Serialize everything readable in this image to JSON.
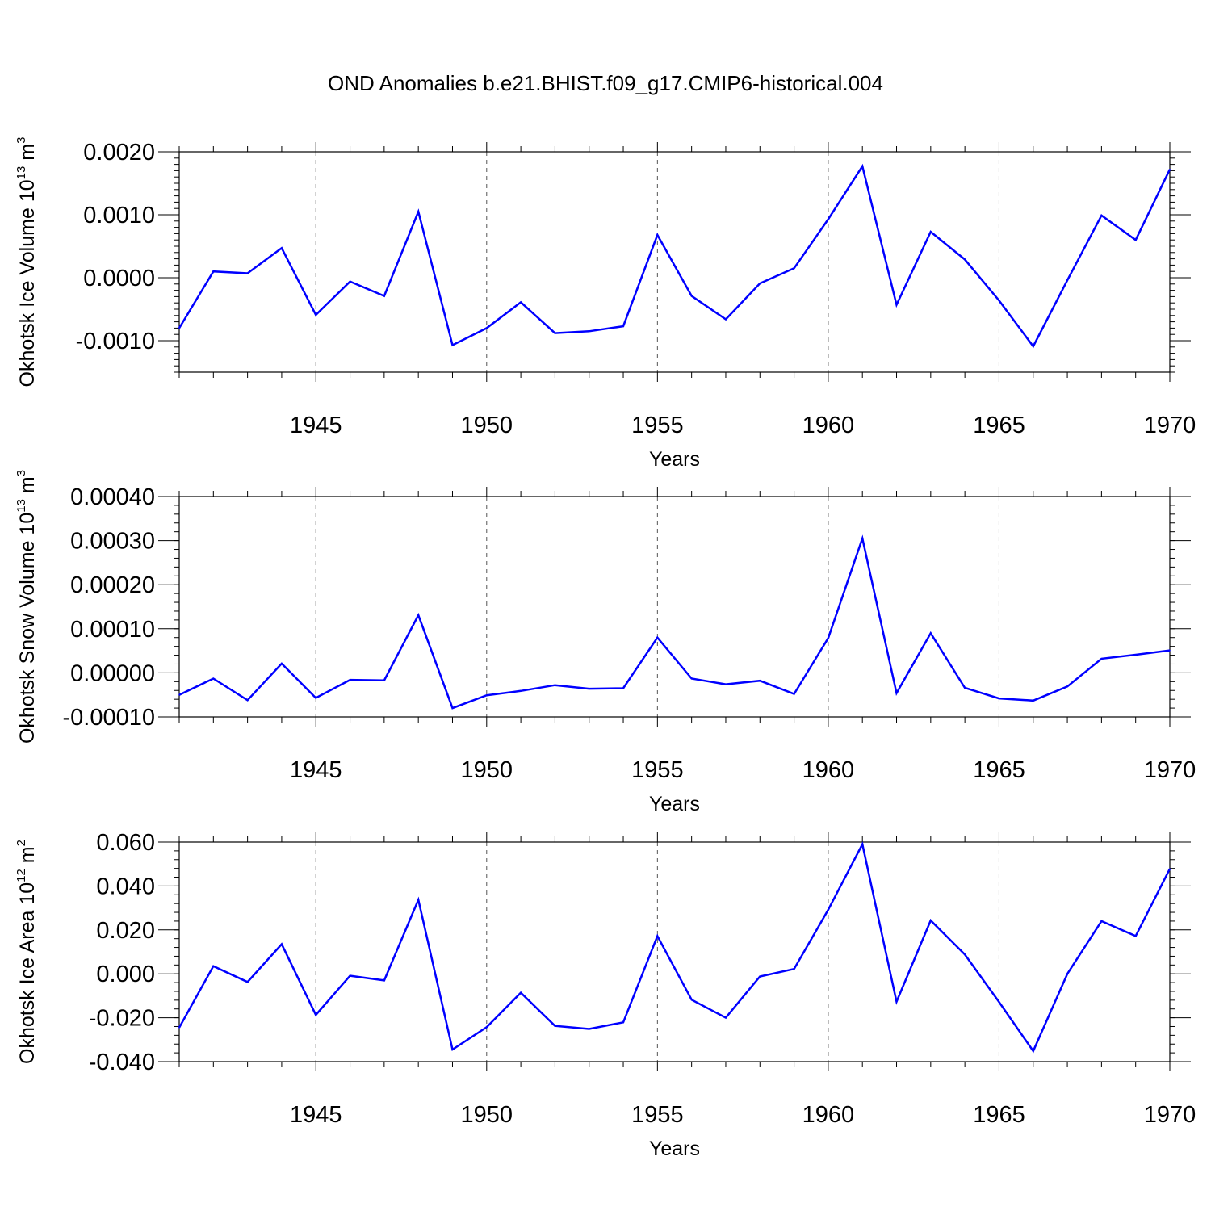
{
  "title": "OND Anomalies b.e21.BHIST.f09_g17.CMIP6-historical.004",
  "line_color": "#0000ff",
  "chart_data": [
    {
      "type": "line",
      "ylabel": "Okhotsk Ice Volume 10",
      "ylabel_sup": "13",
      "ylabel_unit": "m",
      "ylabel_unit_sup": "3",
      "xlabel": "Years",
      "xlim": [
        1941,
        1970
      ],
      "ylim": [
        -0.0015,
        0.002
      ],
      "yticks": [
        -0.001,
        0,
        0.001,
        0.002
      ],
      "ytick_labels": [
        "-0.0010",
        "0.0000",
        "0.0010",
        "0.0020"
      ],
      "yminor": 0.0001,
      "xticks": [
        1945,
        1950,
        1955,
        1960,
        1965,
        1970
      ],
      "xtick_labels": [
        "1945",
        "1950",
        "1955",
        "1960",
        "1965",
        "1970"
      ],
      "x": [
        1941,
        1942,
        1943,
        1944,
        1945,
        1946,
        1947,
        1948,
        1949,
        1950,
        1951,
        1952,
        1953,
        1954,
        1955,
        1956,
        1957,
        1958,
        1959,
        1960,
        1961,
        1962,
        1963,
        1964,
        1965,
        1966,
        1967,
        1968,
        1969,
        1970
      ],
      "series": [
        {
          "values": [
            -0.0008,
            0.0001,
            7e-05,
            0.00047,
            -0.00059,
            -6e-05,
            -0.00029,
            0.00105,
            -0.00107,
            -0.0008,
            -0.00039,
            -0.00088,
            -0.00085,
            -0.00077,
            0.00068,
            -0.00029,
            -0.00066,
            -9e-05,
            0.00015,
            0.00093,
            0.00177,
            -0.00043,
            0.00073,
            0.00029,
            -0.00036,
            -0.00109,
            -4e-05,
            0.00099,
            0.0006,
            0.00172
          ]
        }
      ]
    },
    {
      "type": "line",
      "ylabel": "Okhotsk Snow Volume 10",
      "ylabel_sup": "13",
      "ylabel_unit": "m",
      "ylabel_unit_sup": "3",
      "xlabel": "Years",
      "xlim": [
        1941,
        1970
      ],
      "ylim": [
        -0.0001,
        0.0004
      ],
      "yticks": [
        -0.0001,
        0,
        0.0001,
        0.0002,
        0.0003,
        0.0004
      ],
      "ytick_labels": [
        "-0.00010",
        "0.00000",
        "0.00010",
        "0.00020",
        "0.00030",
        "0.00040"
      ],
      "yminor": 2e-05,
      "xticks": [
        1945,
        1950,
        1955,
        1960,
        1965,
        1970
      ],
      "xtick_labels": [
        "1945",
        "1950",
        "1955",
        "1960",
        "1965",
        "1970"
      ],
      "x": [
        1941,
        1942,
        1943,
        1944,
        1945,
        1946,
        1947,
        1948,
        1949,
        1950,
        1951,
        1952,
        1953,
        1954,
        1955,
        1956,
        1957,
        1958,
        1959,
        1960,
        1961,
        1962,
        1963,
        1964,
        1965,
        1966,
        1967,
        1968,
        1969,
        1970
      ],
      "series": [
        {
          "values": [
            -5e-05,
            -1.3e-05,
            -6.2e-05,
            2.1e-05,
            -5.7e-05,
            -1.6e-05,
            -1.7e-05,
            0.000131,
            -8e-05,
            -5.1e-05,
            -4.1e-05,
            -2.8e-05,
            -3.6e-05,
            -3.5e-05,
            8e-05,
            -1.3e-05,
            -2.6e-05,
            -1.8e-05,
            -4.8e-05,
            7.9e-05,
            0.000305,
            -4.6e-05,
            9e-05,
            -3.4e-05,
            -5.8e-05,
            -6.3e-05,
            -3.1e-05,
            3.2e-05,
            4.1e-05,
            5.1e-05
          ]
        }
      ]
    },
    {
      "type": "line",
      "ylabel": "Okhotsk Ice Area 10",
      "ylabel_sup": "12",
      "ylabel_unit": "m",
      "ylabel_unit_sup": "2",
      "xlabel": "Years",
      "xlim": [
        1941,
        1970
      ],
      "ylim": [
        -0.04,
        0.06
      ],
      "yticks": [
        -0.04,
        -0.02,
        0,
        0.02,
        0.04,
        0.06
      ],
      "ytick_labels": [
        "-0.040",
        "-0.020",
        "0.000",
        "0.020",
        "0.040",
        "0.060"
      ],
      "yminor": 0.004,
      "xticks": [
        1945,
        1950,
        1955,
        1960,
        1965,
        1970
      ],
      "xtick_labels": [
        "1945",
        "1950",
        "1955",
        "1960",
        "1965",
        "1970"
      ],
      "x": [
        1941,
        1942,
        1943,
        1944,
        1945,
        1946,
        1947,
        1948,
        1949,
        1950,
        1951,
        1952,
        1953,
        1954,
        1955,
        1956,
        1957,
        1958,
        1959,
        1960,
        1961,
        1962,
        1963,
        1964,
        1965,
        1966,
        1967,
        1968,
        1969,
        1970
      ],
      "series": [
        {
          "values": [
            -0.0245,
            0.0035,
            -0.0037,
            0.0135,
            -0.0187,
            -0.0009,
            -0.003,
            0.0337,
            -0.0345,
            -0.0243,
            -0.0086,
            -0.0237,
            -0.0251,
            -0.0221,
            0.0172,
            -0.0118,
            -0.02,
            -0.0012,
            0.0022,
            0.0292,
            0.059,
            -0.0127,
            0.0243,
            0.0088,
            -0.0128,
            -0.0352,
            0.0,
            0.024,
            0.0172,
            0.0478
          ]
        }
      ]
    }
  ]
}
